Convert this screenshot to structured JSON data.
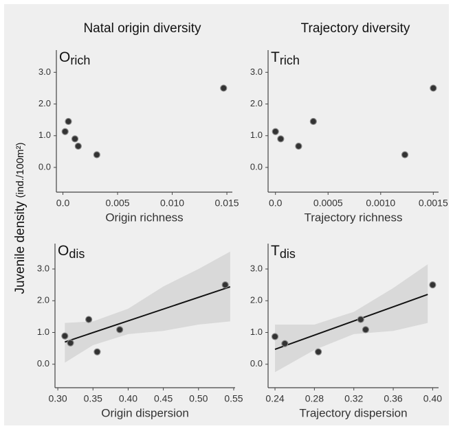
{
  "column_titles": [
    "Natal origin diversity",
    "Trajectory diversity"
  ],
  "y_label": "Juvenile density",
  "y_label_units": "(ind./100m²)",
  "chart_data": [
    {
      "type": "scatter",
      "title": "O",
      "title_subscript": "rich",
      "x_label": "Origin richness",
      "x": [
        0.0002,
        0.0005,
        0.0011,
        0.0014,
        0.0031,
        0.0147
      ],
      "values": [
        1.13,
        1.45,
        0.9,
        0.67,
        0.4,
        2.5
      ],
      "color": "#333333",
      "xlim": [
        -0.0006,
        0.0155
      ],
      "xticks": [
        {
          "value": 0,
          "label": "0.0"
        },
        0.005,
        {
          "value": 0.01,
          "label": "0.010"
        },
        0.015
      ],
      "ylim": [
        -0.78,
        3.7
      ],
      "yticks": [
        {
          "value": 0,
          "label": "0.0"
        },
        {
          "value": 1,
          "label": "1.0"
        },
        {
          "value": 2,
          "label": "2.0"
        },
        {
          "value": 3,
          "label": "3.0"
        }
      ]
    },
    {
      "type": "scatter",
      "title": "T",
      "title_subscript": "rich",
      "x_label": "Trajectory richness",
      "x": [
        0.0,
        5e-05,
        0.00022,
        0.00036,
        0.00123,
        0.0015
      ],
      "values": [
        1.13,
        0.9,
        0.67,
        1.45,
        0.4,
        2.5
      ],
      "color": "#333333",
      "xlim": [
        -7e-05,
        0.00155
      ],
      "xticks": [
        {
          "value": 0,
          "label": "0.0"
        },
        0.0005,
        {
          "value": 0.001,
          "label": "0.0010"
        },
        0.0015
      ],
      "ylim": [
        -0.78,
        3.7
      ],
      "yticks": [
        {
          "value": 0,
          "label": "0.0"
        },
        {
          "value": 1,
          "label": "1.0"
        },
        {
          "value": 2,
          "label": "2.0"
        },
        {
          "value": 3,
          "label": "3.0"
        }
      ]
    },
    {
      "type": "scatter",
      "title": "O",
      "title_subscript": "dis",
      "x_label": "Origin dispersion",
      "x": [
        0.31,
        0.318,
        0.344,
        0.356,
        0.388,
        0.538
      ],
      "values": [
        0.89,
        0.67,
        1.41,
        0.39,
        1.09,
        2.5
      ],
      "color": "#333333",
      "fit": {
        "x": [
          0.31,
          0.545
        ],
        "y": [
          0.7,
          2.44
        ]
      },
      "band": {
        "x": [
          0.31,
          0.35,
          0.4,
          0.45,
          0.5,
          0.545
        ],
        "upper": [
          1.3,
          1.35,
          1.75,
          2.45,
          3.0,
          3.55
        ],
        "lower": [
          0.05,
          0.6,
          0.95,
          1.05,
          1.25,
          1.35
        ]
      },
      "xlim": [
        0.296,
        0.552
      ],
      "xticks": [
        {
          "value": 0.3,
          "label": "0.30"
        },
        0.35,
        {
          "value": 0.4,
          "label": "0.40"
        },
        0.45,
        {
          "value": 0.5,
          "label": "0.50"
        },
        0.55
      ],
      "ylim": [
        -0.74,
        3.8
      ],
      "yticks": [
        {
          "value": 0,
          "label": "0.0"
        },
        {
          "value": 1,
          "label": "1.0"
        },
        {
          "value": 2,
          "label": "2.0"
        },
        {
          "value": 3,
          "label": "3.0"
        }
      ]
    },
    {
      "type": "scatter",
      "title": "T",
      "title_subscript": "dis",
      "x_label": "Trajectory dispersion",
      "x": [
        0.24,
        0.25,
        0.284,
        0.327,
        0.332,
        0.4
      ],
      "values": [
        0.87,
        0.65,
        0.39,
        1.41,
        1.09,
        2.5
      ],
      "color": "#333333",
      "fit": {
        "x": [
          0.24,
          0.395
        ],
        "y": [
          0.47,
          2.2
        ]
      },
      "band": {
        "x": [
          0.24,
          0.28,
          0.32,
          0.36,
          0.395
        ],
        "upper": [
          1.25,
          1.25,
          1.65,
          2.4,
          3.15
        ],
        "lower": [
          -0.25,
          0.45,
          0.95,
          1.05,
          1.3
        ]
      },
      "xlim": [
        0.233,
        0.406
      ],
      "xticks": [
        0.24,
        0.28,
        0.32,
        0.36,
        {
          "value": 0.4,
          "label": "0.40"
        }
      ],
      "ylim": [
        -0.74,
        3.8
      ],
      "yticks": [
        {
          "value": 0,
          "label": "0.0"
        },
        {
          "value": 1,
          "label": "1.0"
        },
        {
          "value": 2,
          "label": "2.0"
        },
        {
          "value": 3,
          "label": "3.0"
        }
      ]
    }
  ]
}
